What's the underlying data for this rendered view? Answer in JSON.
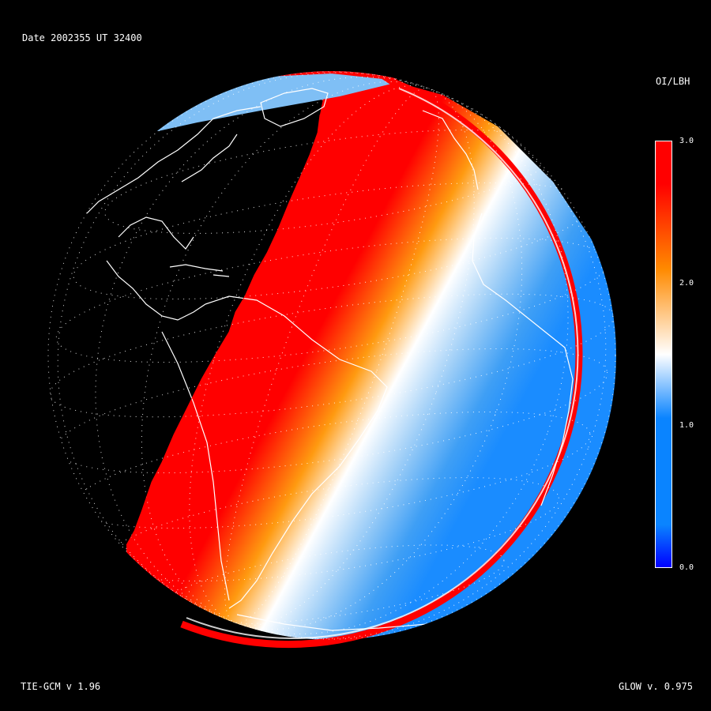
{
  "header": {
    "title": "Date 2002355   UT 32400"
  },
  "footer": {
    "left": "TIE-GCM v 1.96",
    "right": "GLOW v. 0.975"
  },
  "colorbar": {
    "title": "OI/LBH",
    "ticks": [
      "3.0",
      "2.0",
      "1.0",
      "0.0"
    ],
    "range": [
      0.0,
      3.0
    ],
    "colors": {
      "max": "#ff0000",
      "upper": "#ff8a00",
      "mid": "#ffffff",
      "lower": "#0a84ff",
      "min": "#0000ff"
    }
  },
  "map": {
    "projection": "orthographic globe",
    "background": "#000000",
    "coastline_color": "#ffffff",
    "grid": "dotted lat/lon",
    "night_side": "black",
    "day_colors": {
      "terminator": "#ff0000",
      "transition": "#ff9a10",
      "peak": "#ffffff",
      "low": "#1a8cff"
    }
  }
}
